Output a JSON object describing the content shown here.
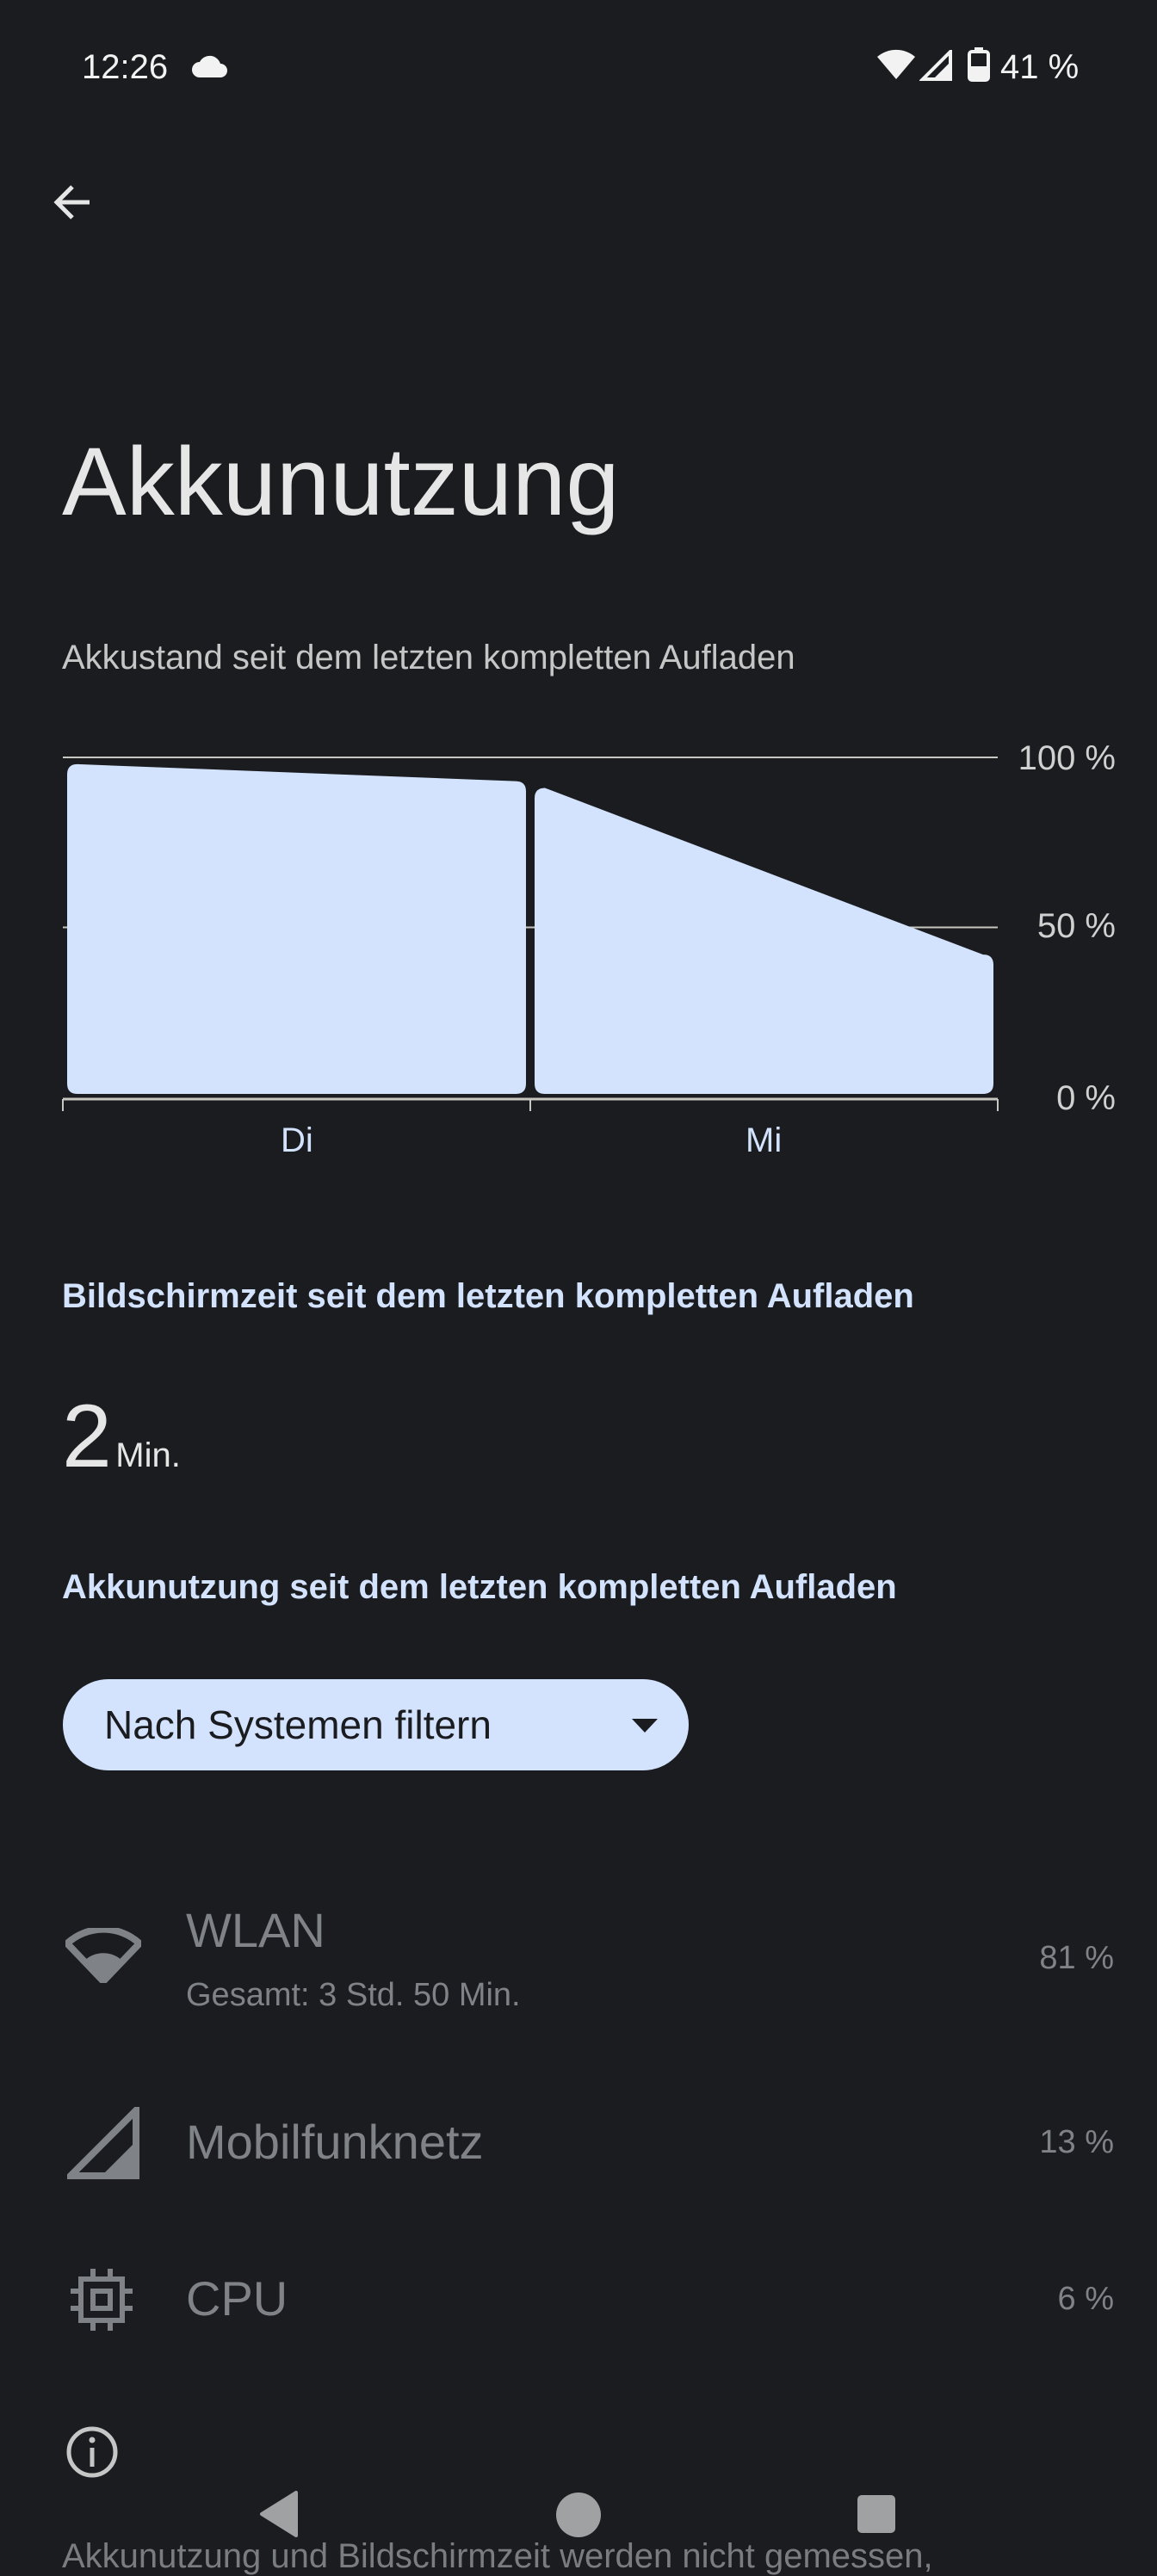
{
  "status_bar": {
    "time": "12:26",
    "battery": "41 %",
    "icons": [
      "cloud-icon",
      "wifi-icon",
      "signal-icon",
      "battery-icon"
    ]
  },
  "header": {
    "back": "back-arrow-icon",
    "title": "Akkunutzung"
  },
  "chart_section": {
    "subtitle": "Akkustand seit dem letzten kompletten Aufladen"
  },
  "chart_data": {
    "type": "area",
    "title": "",
    "y_ticks": [
      "100 %",
      "50 %",
      "0 %"
    ],
    "ylim": [
      0,
      100
    ],
    "categories": [
      "Di",
      "Mi"
    ],
    "series": [
      {
        "segment": "Di",
        "start": 98,
        "end": 93
      },
      {
        "segment": "Mi",
        "start": 91,
        "end": 42
      }
    ],
    "fill_color": "#d3e3fd",
    "grid": true
  },
  "screen_time": {
    "label": "Bildschirmzeit seit dem letzten kompletten Aufladen",
    "value": "2",
    "unit": "Min."
  },
  "usage": {
    "label": "Akkunutzung seit dem letzten kompletten Aufladen",
    "filter": "Nach Systemen filtern",
    "items": [
      {
        "name": "WLAN",
        "detail": "Gesamt: 3 Std. 50 Min.",
        "percent": "81 %",
        "icon": "wifi-icon"
      },
      {
        "name": "Mobilfunknetz",
        "percent": "13 %",
        "icon": "signal-icon"
      },
      {
        "name": "CPU",
        "percent": "6 %",
        "icon": "cpu-icon"
      }
    ]
  },
  "footer": {
    "text": "Akkunutzung und Bildschirmzeit werden nicht gemessen,"
  }
}
